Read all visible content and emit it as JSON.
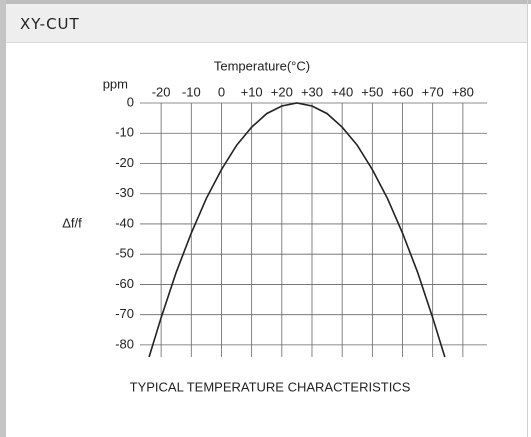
{
  "header": {
    "title": "XY-CUT"
  },
  "chart_data": {
    "type": "line",
    "title": "TYPICAL TEMPERATURE CHARACTERISTICS",
    "x_label": "Temperature(°C)",
    "y_label": "Δf/f",
    "y_unit": "ppm",
    "x": [
      -24,
      -20,
      -15,
      -10,
      -5,
      0,
      5,
      10,
      15,
      20,
      25,
      30,
      35,
      40,
      45,
      50,
      55,
      60,
      65,
      70,
      74
    ],
    "values": [
      -84,
      -71,
      -56,
      -43,
      -31.5,
      -22,
      -14,
      -8,
      -3.5,
      -1,
      0,
      -1,
      -3.5,
      -8,
      -14,
      -22,
      -31.5,
      -43,
      -56,
      -71,
      -84
    ],
    "color": "#222222",
    "xlim": [
      -27,
      88
    ],
    "ylim": [
      -84,
      0
    ],
    "xticks": [
      -20,
      -10,
      0,
      {
        "value": 10,
        "label": "+10"
      },
      {
        "value": 20,
        "label": "+20"
      },
      {
        "value": 30,
        "label": "+30"
      },
      {
        "value": 40,
        "label": "+40"
      },
      {
        "value": 50,
        "label": "+50"
      },
      {
        "value": 60,
        "label": "+60"
      },
      {
        "value": 70,
        "label": "+70"
      },
      {
        "value": 80,
        "label": "+80"
      }
    ],
    "yticks": [
      0,
      -10,
      -20,
      -30,
      -40,
      -50,
      -60,
      -70,
      -80
    ],
    "grid": true
  }
}
